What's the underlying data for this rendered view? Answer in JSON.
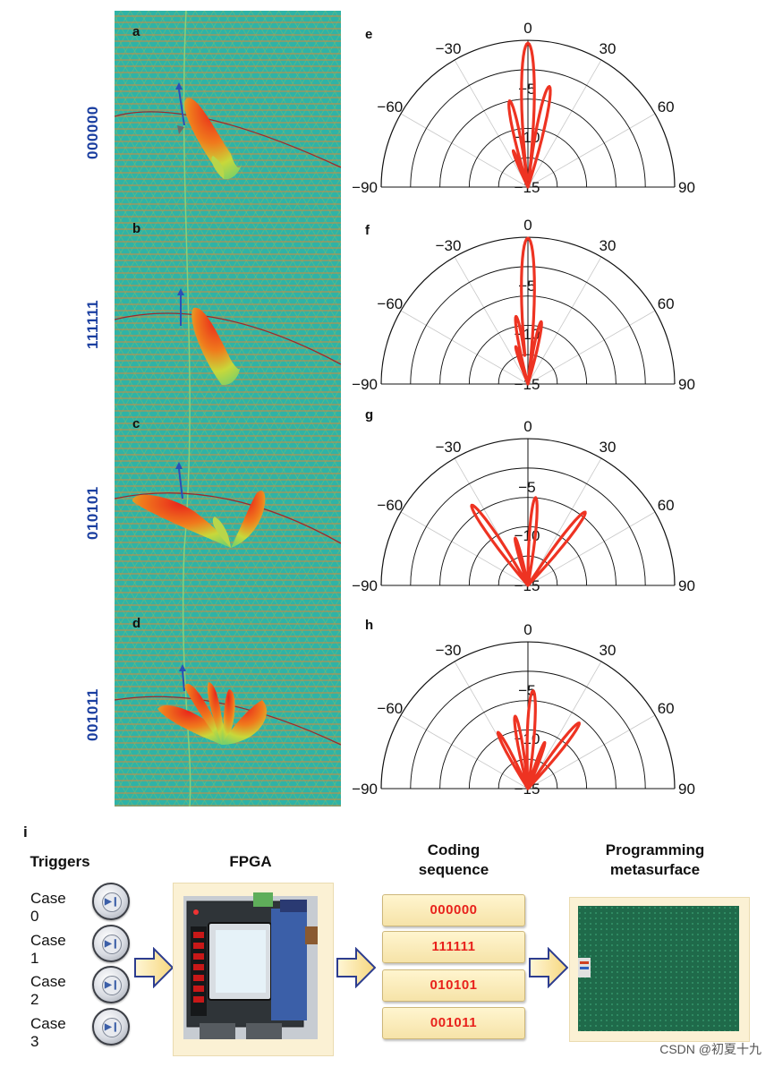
{
  "figure": {
    "panel_labels": [
      "a",
      "b",
      "c",
      "d",
      "e",
      "f",
      "g",
      "h",
      "i"
    ],
    "coding_labels": [
      "000000",
      "111111",
      "010101",
      "001011"
    ],
    "polar_axis": {
      "angle_ticks": [
        "0",
        "−30",
        "30",
        "−60",
        "60",
        "−90",
        "90"
      ],
      "radial_ticks": [
        "−5",
        "−10",
        "−15"
      ]
    },
    "chart_data": [
      {
        "type": "polar",
        "panel": "e",
        "code": "000000",
        "theta_range": [
          -90,
          90
        ],
        "r_range": [
          -15,
          0
        ],
        "lobes": [
          {
            "angle": 0,
            "level_db": -0.3
          },
          {
            "angle": 12,
            "level_db": -4.5
          },
          {
            "angle": -12,
            "level_db": -6
          },
          {
            "angle": -22,
            "level_db": -11
          }
        ]
      },
      {
        "type": "polar",
        "panel": "f",
        "code": "111111",
        "theta_range": [
          -90,
          90
        ],
        "r_range": [
          -15,
          0
        ],
        "lobes": [
          {
            "angle": 0,
            "level_db": -0.1
          },
          {
            "angle": 12,
            "level_db": -8.5
          },
          {
            "angle": -10,
            "level_db": -8
          },
          {
            "angle": -18,
            "level_db": -11
          }
        ]
      },
      {
        "type": "polar",
        "panel": "g",
        "code": "010101",
        "theta_range": [
          -90,
          90
        ],
        "r_range": [
          -15,
          0
        ],
        "lobes": [
          {
            "angle": -35,
            "level_db": -5
          },
          {
            "angle": 38,
            "level_db": -5.5
          },
          {
            "angle": 5,
            "level_db": -6
          },
          {
            "angle": -15,
            "level_db": -10
          }
        ]
      },
      {
        "type": "polar",
        "panel": "h",
        "code": "001011",
        "theta_range": [
          -90,
          90
        ],
        "r_range": [
          -15,
          0
        ],
        "lobes": [
          {
            "angle": 3,
            "level_db": -5
          },
          {
            "angle": 38,
            "level_db": -6.5
          },
          {
            "angle": -28,
            "level_db": -8.5
          },
          {
            "angle": -10,
            "level_db": -7.5
          },
          {
            "angle": 20,
            "level_db": -10
          }
        ]
      }
    ]
  },
  "flow": {
    "triggers_title": "Triggers",
    "fpga_title": "FPGA",
    "coding_title_1": "Coding",
    "coding_title_2": "sequence",
    "prog_title_1": "Programming",
    "prog_title_2": "metasurface",
    "cases": [
      "Case 0",
      "Case 1",
      "Case 2",
      "Case 3"
    ],
    "play_glyph": "▶❙",
    "sequences": [
      "000000",
      "111111",
      "010101",
      "001011"
    ]
  },
  "watermark": "CSDN @初夏十九"
}
